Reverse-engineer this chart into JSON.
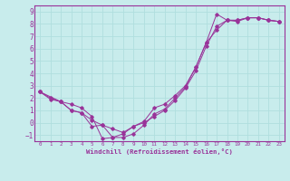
{
  "xlabel": "Windchill (Refroidissement éolien,°C)",
  "bg_color": "#c8ecec",
  "line_color": "#993399",
  "grid_color": "#b0dede",
  "xlim": [
    -0.5,
    23.5
  ],
  "ylim": [
    -1.5,
    9.5
  ],
  "xticks": [
    0,
    1,
    2,
    3,
    4,
    5,
    6,
    7,
    8,
    9,
    10,
    11,
    12,
    13,
    14,
    15,
    16,
    17,
    18,
    19,
    20,
    21,
    22,
    23
  ],
  "yticks": [
    -1,
    0,
    1,
    2,
    3,
    4,
    5,
    6,
    7,
    8,
    9
  ],
  "line1_x": [
    0,
    1,
    2,
    3,
    4,
    5,
    6,
    7,
    8,
    9,
    10,
    11,
    12,
    13,
    14,
    15,
    16,
    17,
    18,
    19,
    20,
    21,
    22,
    23
  ],
  "line1_y": [
    2.5,
    1.9,
    1.7,
    1.5,
    1.2,
    0.5,
    -1.3,
    -1.2,
    -0.9,
    -0.3,
    0.1,
    1.2,
    1.5,
    2.2,
    3.0,
    4.5,
    6.5,
    8.8,
    8.3,
    8.2,
    8.5,
    8.5,
    8.3,
    8.2
  ],
  "line2_x": [
    0,
    1,
    2,
    3,
    4,
    5,
    6,
    7,
    8,
    9,
    10,
    11,
    12,
    13,
    14,
    15,
    16,
    17,
    18,
    19,
    20,
    21,
    22,
    23
  ],
  "line2_y": [
    2.5,
    2.0,
    1.7,
    1.0,
    0.8,
    0.2,
    -0.2,
    -0.5,
    -0.8,
    -0.3,
    0.0,
    0.5,
    1.0,
    1.8,
    2.8,
    4.2,
    6.2,
    7.8,
    8.3,
    8.3,
    8.5,
    8.5,
    8.3,
    8.2
  ],
  "line3_x": [
    0,
    2,
    3,
    4,
    5,
    6,
    7,
    8,
    9,
    10,
    11,
    12,
    13,
    14,
    15,
    16,
    17,
    18,
    19,
    20,
    21,
    22,
    23
  ],
  "line3_y": [
    2.5,
    1.7,
    1.0,
    0.8,
    -0.3,
    -0.2,
    -1.2,
    -1.2,
    -0.9,
    -0.2,
    0.7,
    1.1,
    2.0,
    2.9,
    4.5,
    6.5,
    7.5,
    8.3,
    8.3,
    8.5,
    8.5,
    8.3,
    8.2
  ]
}
